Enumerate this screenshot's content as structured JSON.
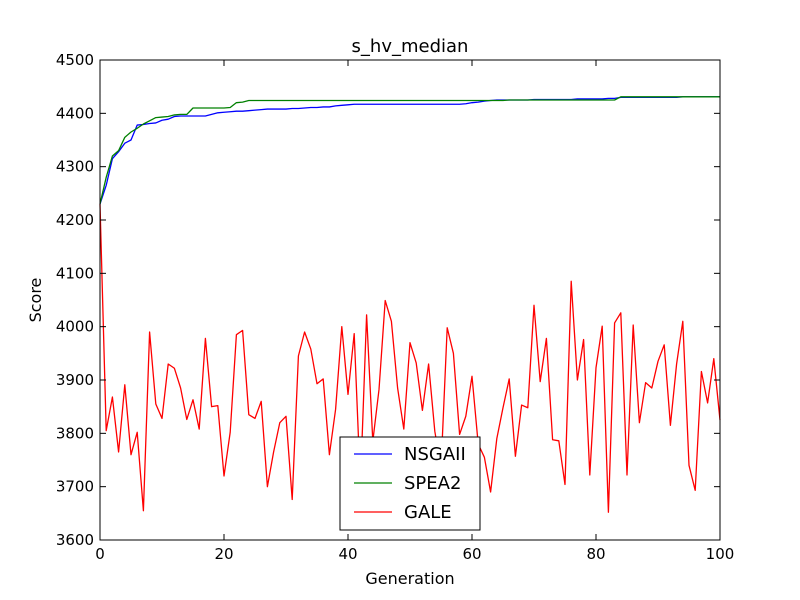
{
  "chart_data": {
    "type": "line",
    "title": "s_hv_median",
    "xlabel": "Generation",
    "ylabel": "Score",
    "xlim": [
      0,
      100
    ],
    "ylim": [
      3600,
      4500
    ],
    "xticks": [
      0,
      20,
      40,
      60,
      80,
      100
    ],
    "yticks": [
      3600,
      3700,
      3800,
      3900,
      4000,
      4100,
      4200,
      4300,
      4400,
      4500
    ],
    "grid": false,
    "legend_position": "lower-center",
    "series": [
      {
        "name": "NSGAII",
        "color": "#0000ff",
        "x": [
          0,
          1,
          2,
          3,
          4,
          5,
          6,
          7,
          8,
          9,
          10,
          11,
          12,
          13,
          14,
          15,
          16,
          17,
          18,
          19,
          20,
          21,
          22,
          23,
          24,
          25,
          26,
          27,
          28,
          29,
          30,
          31,
          32,
          33,
          34,
          35,
          36,
          37,
          38,
          39,
          40,
          41,
          42,
          43,
          44,
          45,
          46,
          47,
          48,
          49,
          50,
          51,
          52,
          53,
          54,
          55,
          56,
          57,
          58,
          59,
          60,
          61,
          62,
          63,
          64,
          65,
          66,
          67,
          68,
          69,
          70,
          71,
          72,
          73,
          74,
          75,
          76,
          77,
          78,
          79,
          80,
          81,
          82,
          83,
          84,
          85,
          86,
          87,
          88,
          89,
          90,
          91,
          92,
          93,
          94,
          95,
          96,
          97,
          98,
          99,
          100
        ],
        "y": [
          4230,
          4265,
          4315,
          4328,
          4344,
          4350,
          4378,
          4379,
          4381,
          4382,
          4387,
          4389,
          4394,
          4395,
          4395,
          4395,
          4395,
          4395,
          4398,
          4401,
          4402,
          4403,
          4404,
          4404,
          4405,
          4406,
          4407,
          4408,
          4408,
          4408,
          4408,
          4409,
          4409,
          4410,
          4411,
          4411,
          4412,
          4412,
          4414,
          4415,
          4416,
          4417,
          4417,
          4417,
          4417,
          4417,
          4417,
          4417,
          4417,
          4417,
          4417,
          4417,
          4417,
          4417,
          4417,
          4417,
          4417,
          4417,
          4417,
          4418,
          4420,
          4421,
          4423,
          4424,
          4425,
          4425,
          4425,
          4425,
          4425,
          4425,
          4426,
          4426,
          4426,
          4426,
          4426,
          4426,
          4426,
          4427,
          4427,
          4427,
          4427,
          4427,
          4428,
          4428,
          4430,
          4430,
          4430,
          4430,
          4430,
          4430,
          4430,
          4430,
          4430,
          4430,
          4431,
          4431,
          4431,
          4431,
          4431,
          4431,
          4431
        ]
      },
      {
        "name": "SPEA2",
        "color": "#008000",
        "x": [
          0,
          1,
          2,
          3,
          4,
          5,
          6,
          7,
          8,
          9,
          10,
          11,
          12,
          13,
          14,
          15,
          16,
          17,
          18,
          19,
          20,
          21,
          22,
          23,
          24,
          25,
          26,
          27,
          28,
          29,
          30,
          31,
          32,
          33,
          34,
          35,
          36,
          37,
          38,
          39,
          40,
          41,
          42,
          43,
          44,
          45,
          46,
          47,
          48,
          49,
          50,
          51,
          52,
          53,
          54,
          55,
          56,
          57,
          58,
          59,
          60,
          61,
          62,
          63,
          64,
          65,
          66,
          67,
          68,
          69,
          70,
          71,
          72,
          73,
          74,
          75,
          76,
          77,
          78,
          79,
          80,
          81,
          82,
          83,
          84,
          85,
          86,
          87,
          88,
          89,
          90,
          91,
          92,
          93,
          94,
          95,
          96,
          97,
          98,
          99,
          100
        ],
        "y": [
          4230,
          4280,
          4320,
          4330,
          4355,
          4365,
          4372,
          4380,
          4386,
          4392,
          4393,
          4394,
          4397,
          4398,
          4398,
          4410,
          4410,
          4410,
          4410,
          4410,
          4410,
          4411,
          4420,
          4421,
          4424,
          4424,
          4424,
          4424,
          4424,
          4424,
          4424,
          4424,
          4424,
          4424,
          4424,
          4424,
          4424,
          4424,
          4424,
          4424,
          4424,
          4424,
          4424,
          4424,
          4424,
          4424,
          4424,
          4424,
          4424,
          4424,
          4424,
          4424,
          4424,
          4424,
          4424,
          4424,
          4424,
          4424,
          4424,
          4424,
          4424,
          4424,
          4424,
          4424,
          4424,
          4424,
          4425,
          4425,
          4425,
          4425,
          4425,
          4425,
          4425,
          4425,
          4425,
          4425,
          4425,
          4425,
          4425,
          4425,
          4425,
          4425,
          4425,
          4425,
          4431,
          4431,
          4431,
          4431,
          4431,
          4431,
          4431,
          4431,
          4431,
          4431,
          4431,
          4431,
          4431,
          4431,
          4431,
          4431,
          4431
        ]
      },
      {
        "name": "GALE",
        "color": "#ff0000",
        "x": [
          0,
          1,
          2,
          3,
          4,
          5,
          6,
          7,
          8,
          9,
          10,
          11,
          12,
          13,
          14,
          15,
          16,
          17,
          18,
          19,
          20,
          21,
          22,
          23,
          24,
          25,
          26,
          27,
          28,
          29,
          30,
          31,
          32,
          33,
          34,
          35,
          36,
          37,
          38,
          39,
          40,
          41,
          42,
          43,
          44,
          45,
          46,
          47,
          48,
          49,
          50,
          51,
          52,
          53,
          54,
          55,
          56,
          57,
          58,
          59,
          60,
          61,
          62,
          63,
          64,
          65,
          66,
          67,
          68,
          69,
          70,
          71,
          72,
          73,
          74,
          75,
          76,
          77,
          78,
          79,
          80,
          81,
          82,
          83,
          84,
          85,
          86,
          87,
          88,
          89,
          90,
          91,
          92,
          93,
          94,
          95,
          96,
          97,
          98,
          99,
          100
        ],
        "y": [
          4230,
          3805,
          3868,
          3765,
          3891,
          3760,
          3802,
          3655,
          3990,
          3855,
          3828,
          3930,
          3922,
          3885,
          3826,
          3863,
          3808,
          3978,
          3850,
          3852,
          3720,
          3802,
          3985,
          3993,
          3835,
          3828,
          3860,
          3700,
          3765,
          3820,
          3832,
          3676,
          3945,
          3990,
          3958,
          3893,
          3902,
          3760,
          3845,
          4000,
          3873,
          3987,
          3703,
          4022,
          3785,
          3882,
          4049,
          4010,
          3885,
          3808,
          3970,
          3932,
          3843,
          3930,
          3804,
          3734,
          3998,
          3950,
          3798,
          3832,
          3907,
          3780,
          3755,
          3690,
          3790,
          3848,
          3902,
          3757,
          3853,
          3848,
          4040,
          3897,
          3978,
          3788,
          3786,
          3704,
          4085,
          3900,
          3976,
          3722,
          3923,
          4001,
          3652,
          4007,
          4026,
          3722,
          4003,
          3820,
          3895,
          3885,
          3935,
          3966,
          3815,
          3930,
          4010,
          3740,
          3693,
          3916,
          3857,
          3940,
          3825
        ]
      }
    ]
  }
}
